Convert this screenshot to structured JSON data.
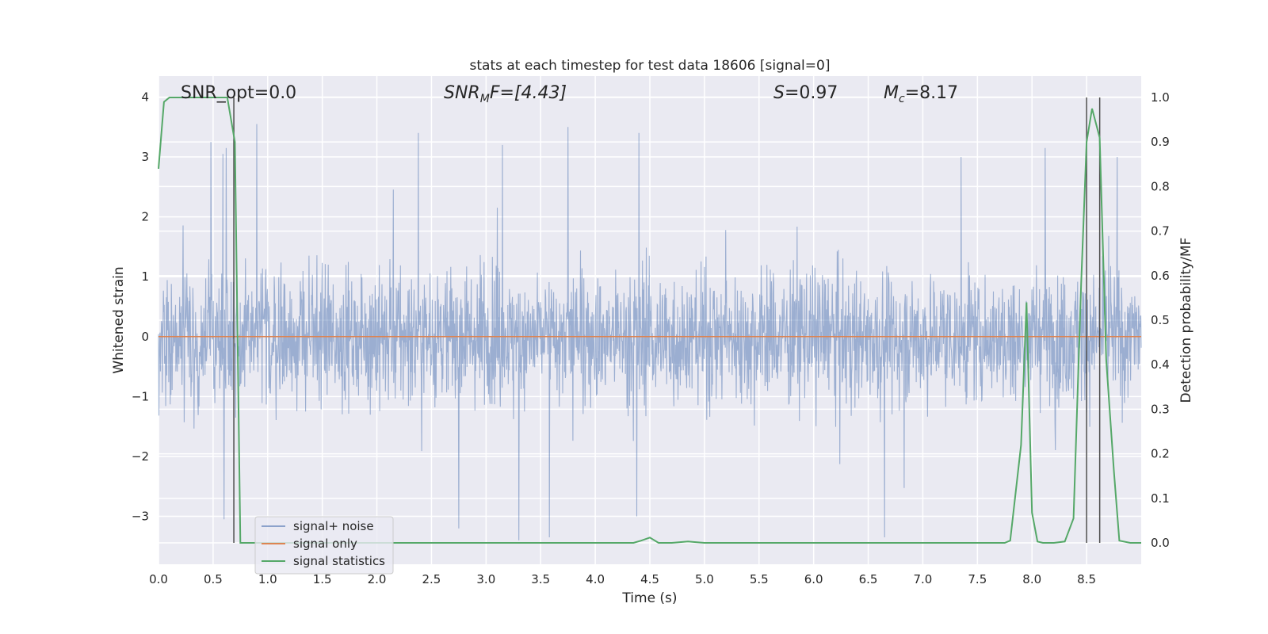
{
  "chart_data": {
    "type": "line",
    "title": "stats at each timestep for test data 18606 [signal=0]",
    "xlabel": "Time (s)",
    "ylabel": "Whitened strain",
    "y2label": "Detection probability/MF",
    "xlim": [
      0,
      9.0
    ],
    "ylim": [
      -3.8,
      4.35
    ],
    "y2lim": [
      -0.048,
      1.048
    ],
    "grid": true,
    "legend_position": "lower-left",
    "x_ticks": [
      "0.0",
      "0.5",
      "1.0",
      "1.5",
      "2.0",
      "2.5",
      "3.0",
      "3.5",
      "4.0",
      "4.5",
      "5.0",
      "5.5",
      "6.0",
      "6.5",
      "7.0",
      "7.5",
      "8.0",
      "8.5"
    ],
    "y_ticks": [
      "−3",
      "−2",
      "−1",
      "0",
      "1",
      "2",
      "3",
      "4"
    ],
    "y2_ticks": [
      "0.0",
      "0.1",
      "0.2",
      "0.3",
      "0.4",
      "0.5",
      "0.6",
      "0.7",
      "0.8",
      "0.9",
      "1.0"
    ],
    "annotations": {
      "snr_opt": "SNR_opt=0.0",
      "snr_mf_main": "SNR",
      "snr_mf_sub": "M",
      "snr_mf_rest": "F=[4.43]",
      "s_main": "S",
      "s_rest": "=0.97",
      "mc_main": "M",
      "mc_sub": "c",
      "mc_rest": "=8.17"
    },
    "vertical_lines_x": [
      0.69,
      8.5,
      8.62
    ],
    "series": [
      {
        "name": "signal+ noise",
        "color": "#4c72b0",
        "opacity": 0.5,
        "kind": "noise",
        "sample_rate_points": 2600,
        "typical_range": [
          -2.0,
          2.0
        ],
        "peak_events": [
          {
            "x": 0.48,
            "y": 3.25
          },
          {
            "x": 0.59,
            "y": 3.05
          },
          {
            "x": 0.62,
            "y": 3.15
          },
          {
            "x": 0.6,
            "y": -3.05
          },
          {
            "x": 0.9,
            "y": 3.55
          },
          {
            "x": 2.38,
            "y": 3.4
          },
          {
            "x": 2.75,
            "y": -3.2
          },
          {
            "x": 3.15,
            "y": 3.2
          },
          {
            "x": 3.3,
            "y": -3.4
          },
          {
            "x": 3.58,
            "y": -3.35
          },
          {
            "x": 3.75,
            "y": 3.5
          },
          {
            "x": 4.4,
            "y": 3.4
          },
          {
            "x": 4.38,
            "y": -3.0
          },
          {
            "x": 6.65,
            "y": -3.35
          },
          {
            "x": 7.35,
            "y": 3.0
          },
          {
            "x": 8.12,
            "y": 3.15
          },
          {
            "x": 8.78,
            "y": 3.0
          }
        ]
      },
      {
        "name": "signal only",
        "color": "#dd8452",
        "x": [
          0,
          9.0
        ],
        "y": [
          0,
          0
        ]
      },
      {
        "name": "signal statistics",
        "color": "#55a868",
        "axis": "right",
        "x": [
          0.0,
          0.05,
          0.1,
          0.2,
          0.3,
          0.4,
          0.5,
          0.6,
          0.63,
          0.7,
          0.75,
          1.0,
          2.0,
          3.0,
          4.0,
          4.35,
          4.42,
          4.5,
          4.58,
          4.7,
          4.85,
          4.9,
          5.0,
          6.0,
          7.0,
          7.75,
          7.8,
          7.9,
          7.95,
          8.0,
          8.05,
          8.1,
          8.2,
          8.3,
          8.38,
          8.45,
          8.5,
          8.55,
          8.62,
          8.68,
          8.75,
          8.8,
          8.9,
          9.0
        ],
        "y": [
          0.84,
          0.99,
          1.0,
          1.0,
          1.0,
          1.0,
          1.0,
          1.0,
          1.0,
          0.9,
          0.0,
          0.0,
          0.0,
          0.0,
          0.0,
          0.0,
          0.005,
          0.012,
          0.0,
          0.0,
          0.003,
          0.002,
          0.0,
          0.0,
          0.0,
          0.0,
          0.005,
          0.22,
          0.54,
          0.068,
          0.003,
          0.0,
          0.0,
          0.003,
          0.055,
          0.58,
          0.9,
          0.975,
          0.91,
          0.41,
          0.16,
          0.005,
          0.0,
          0.0
        ]
      }
    ]
  }
}
